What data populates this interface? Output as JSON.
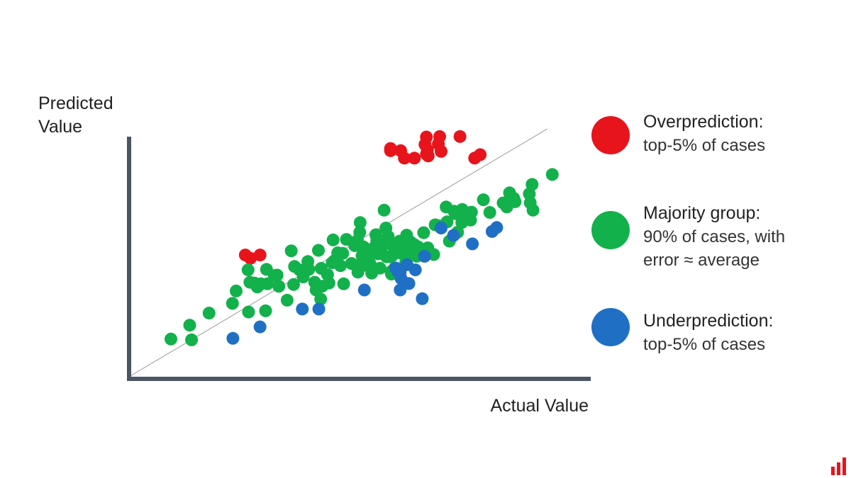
{
  "chart_data": {
    "type": "scatter",
    "title": "",
    "xlabel": "Actual Value",
    "ylabel_lines": [
      "Predicted",
      "Value"
    ],
    "xlim": [
      0,
      100
    ],
    "ylim": [
      0,
      100
    ],
    "grid": false,
    "reference_line": {
      "from": [
        0,
        0
      ],
      "to": [
        91,
        100
      ],
      "color": "#aaaaaa"
    },
    "legend": {
      "placement": "right",
      "entries": [
        {
          "series": "over",
          "line1": "Overprediction:",
          "line2": "top-5% of cases",
          "line3": ""
        },
        {
          "series": "majority",
          "line1": "Majority group:",
          "line2": "90% of cases, with",
          "line3": "error ≈ average"
        },
        {
          "series": "under",
          "line1": "Underprediction:",
          "line2": "top-5% of cases",
          "line3": ""
        }
      ]
    },
    "series": [
      {
        "key": "over",
        "color": "#e8141b",
        "points": [
          [
            25.3,
            49.1
          ],
          [
            26.4,
            47.8
          ],
          [
            28.5,
            49.1
          ],
          [
            56.9,
            91.2
          ],
          [
            56.9,
            92.1
          ],
          [
            59.1,
            91.2
          ],
          [
            59.9,
            88.2
          ],
          [
            62.1,
            88.2
          ],
          [
            64.7,
            89.8
          ],
          [
            64.4,
            93.7
          ],
          [
            65.1,
            89.1
          ],
          [
            64.9,
            91.5
          ],
          [
            67.3,
            93.9
          ],
          [
            67.9,
            90.9
          ],
          [
            64.7,
            96.7
          ],
          [
            67.6,
            96.9
          ],
          [
            72.0,
            96.9
          ],
          [
            75.2,
            88.2
          ],
          [
            76.4,
            89.6
          ]
        ]
      },
      {
        "key": "majority",
        "color": "#12b14b",
        "points": [
          [
            9.1,
            15.2
          ],
          [
            13.6,
            14.9
          ],
          [
            13.2,
            20.8
          ],
          [
            17.4,
            25.7
          ],
          [
            22.5,
            29.6
          ],
          [
            23.3,
            34.6
          ],
          [
            26.0,
            26.1
          ],
          [
            29.7,
            26.6
          ],
          [
            26.3,
            38.1
          ],
          [
            25.9,
            43.1
          ],
          [
            27.3,
            37.8
          ],
          [
            27.9,
            36.2
          ],
          [
            28.7,
            37.5
          ],
          [
            30.1,
            37.5
          ],
          [
            29.9,
            43.3
          ],
          [
            31.6,
            40.8
          ],
          [
            32.6,
            36.5
          ],
          [
            34.4,
            30.9
          ],
          [
            35.8,
            37.2
          ],
          [
            35.3,
            50.8
          ],
          [
            37.1,
            43.1
          ],
          [
            37.9,
            40.3
          ],
          [
            38.9,
            46.5
          ],
          [
            39.1,
            43.3
          ],
          [
            40.4,
            38.1
          ],
          [
            40.7,
            35.0
          ],
          [
            41.2,
            51.0
          ],
          [
            41.8,
            43.7
          ],
          [
            41.7,
            31.3
          ],
          [
            42.0,
            36.5
          ],
          [
            43.2,
            41.2
          ],
          [
            43.5,
            37.8
          ],
          [
            44.2,
            46.0
          ],
          [
            44.4,
            55.2
          ],
          [
            45.4,
            50.0
          ],
          [
            46.0,
            44.8
          ],
          [
            46.7,
            37.5
          ],
          [
            46.5,
            49.8
          ],
          [
            47.3,
            55.4
          ],
          [
            48.4,
            45.7
          ],
          [
            49.1,
            52.9
          ],
          [
            49.4,
            53.7
          ],
          [
            49.4,
            44.8
          ],
          [
            49.7,
            55.0
          ],
          [
            50.2,
            58.3
          ],
          [
            50.3,
            62.2
          ],
          [
            50.7,
            48.8
          ],
          [
            50.8,
            44.8
          ],
          [
            51.0,
            52.4
          ],
          [
            51.7,
            51.5
          ],
          [
            52.4,
            49.6
          ],
          [
            52.4,
            45.7
          ],
          [
            53.5,
            52.4
          ],
          [
            53.7,
            57.3
          ],
          [
            53.9,
            55.0
          ],
          [
            54.5,
            51.5
          ],
          [
            54.2,
            49.6
          ],
          [
            54.6,
            43.8
          ],
          [
            55.2,
            52.9
          ],
          [
            55.5,
            67.2
          ],
          [
            55.9,
            60.0
          ],
          [
            56.0,
            48.4
          ],
          [
            56.7,
            48.4
          ],
          [
            56.4,
            56.6
          ],
          [
            57.0,
            42.4
          ],
          [
            57.1,
            41.4
          ],
          [
            57.2,
            48.8
          ],
          [
            57.6,
            52.3
          ],
          [
            57.8,
            43.8
          ],
          [
            58.0,
            51.0
          ],
          [
            58.2,
            53.0
          ],
          [
            58.9,
            54.7
          ],
          [
            59.2,
            49.8
          ],
          [
            60.2,
            54.3
          ],
          [
            60.4,
            55.4
          ],
          [
            60.2,
            46.0
          ],
          [
            60.4,
            57.1
          ],
          [
            60.8,
            48.8
          ],
          [
            60.9,
            52.4
          ],
          [
            61.3,
            54.3
          ],
          [
            61.2,
            50.9
          ],
          [
            61.4,
            49.6
          ],
          [
            62.1,
            53.3
          ],
          [
            62.6,
            50.1
          ],
          [
            62.6,
            48.6
          ],
          [
            62.9,
            52.4
          ],
          [
            64.1,
            58.1
          ],
          [
            65.0,
            52.0
          ],
          [
            66.3,
            49.3
          ],
          [
            66.6,
            61.3
          ],
          [
            69.0,
            68.5
          ],
          [
            69.2,
            62.5
          ],
          [
            69.7,
            54.7
          ],
          [
            70.7,
            66.8
          ],
          [
            71.0,
            65.8
          ],
          [
            72.4,
            66.3
          ],
          [
            72.4,
            62.2
          ],
          [
            72.5,
            67.5
          ],
          [
            74.3,
            63.2
          ],
          [
            74.5,
            66.4
          ],
          [
            77.1,
            71.4
          ],
          [
            78.5,
            66.3
          ],
          [
            81.4,
            70.1
          ],
          [
            82.2,
            68.5
          ],
          [
            82.4,
            70.6
          ],
          [
            82.8,
            74.2
          ],
          [
            83.3,
            71.8
          ],
          [
            83.7,
            72.0
          ],
          [
            84.0,
            70.6
          ],
          [
            87.3,
            70.2
          ],
          [
            87.1,
            73.8
          ],
          [
            87.7,
            77.6
          ],
          [
            87.9,
            67.2
          ],
          [
            92.1,
            81.6
          ],
          [
            36.0,
            44.5
          ],
          [
            44.7,
            46.9
          ],
          [
            32.2,
            41.0
          ],
          [
            49.8,
            42.2
          ],
          [
            71.5,
            58.3
          ],
          [
            67.4,
            60.9
          ],
          [
            52.8,
            41.8
          ]
        ]
      },
      {
        "key": "under",
        "color": "#1f6fc5",
        "points": [
          [
            22.6,
            15.5
          ],
          [
            28.5,
            20.1
          ],
          [
            37.7,
            27.3
          ],
          [
            41.3,
            27.3
          ],
          [
            51.2,
            35.0
          ],
          [
            58.0,
            43.9
          ],
          [
            58.5,
            42.4
          ],
          [
            59.0,
            42.1
          ],
          [
            59.0,
            35.0
          ],
          [
            59.2,
            39.6
          ],
          [
            60.5,
            45.2
          ],
          [
            60.9,
            37.6
          ],
          [
            62.3,
            43.1
          ],
          [
            63.8,
            31.5
          ],
          [
            64.3,
            48.6
          ],
          [
            67.9,
            60.0
          ],
          [
            70.6,
            57.0
          ],
          [
            74.7,
            53.6
          ],
          [
            79.0,
            58.6
          ],
          [
            80.0,
            60.2
          ]
        ]
      }
    ]
  }
}
